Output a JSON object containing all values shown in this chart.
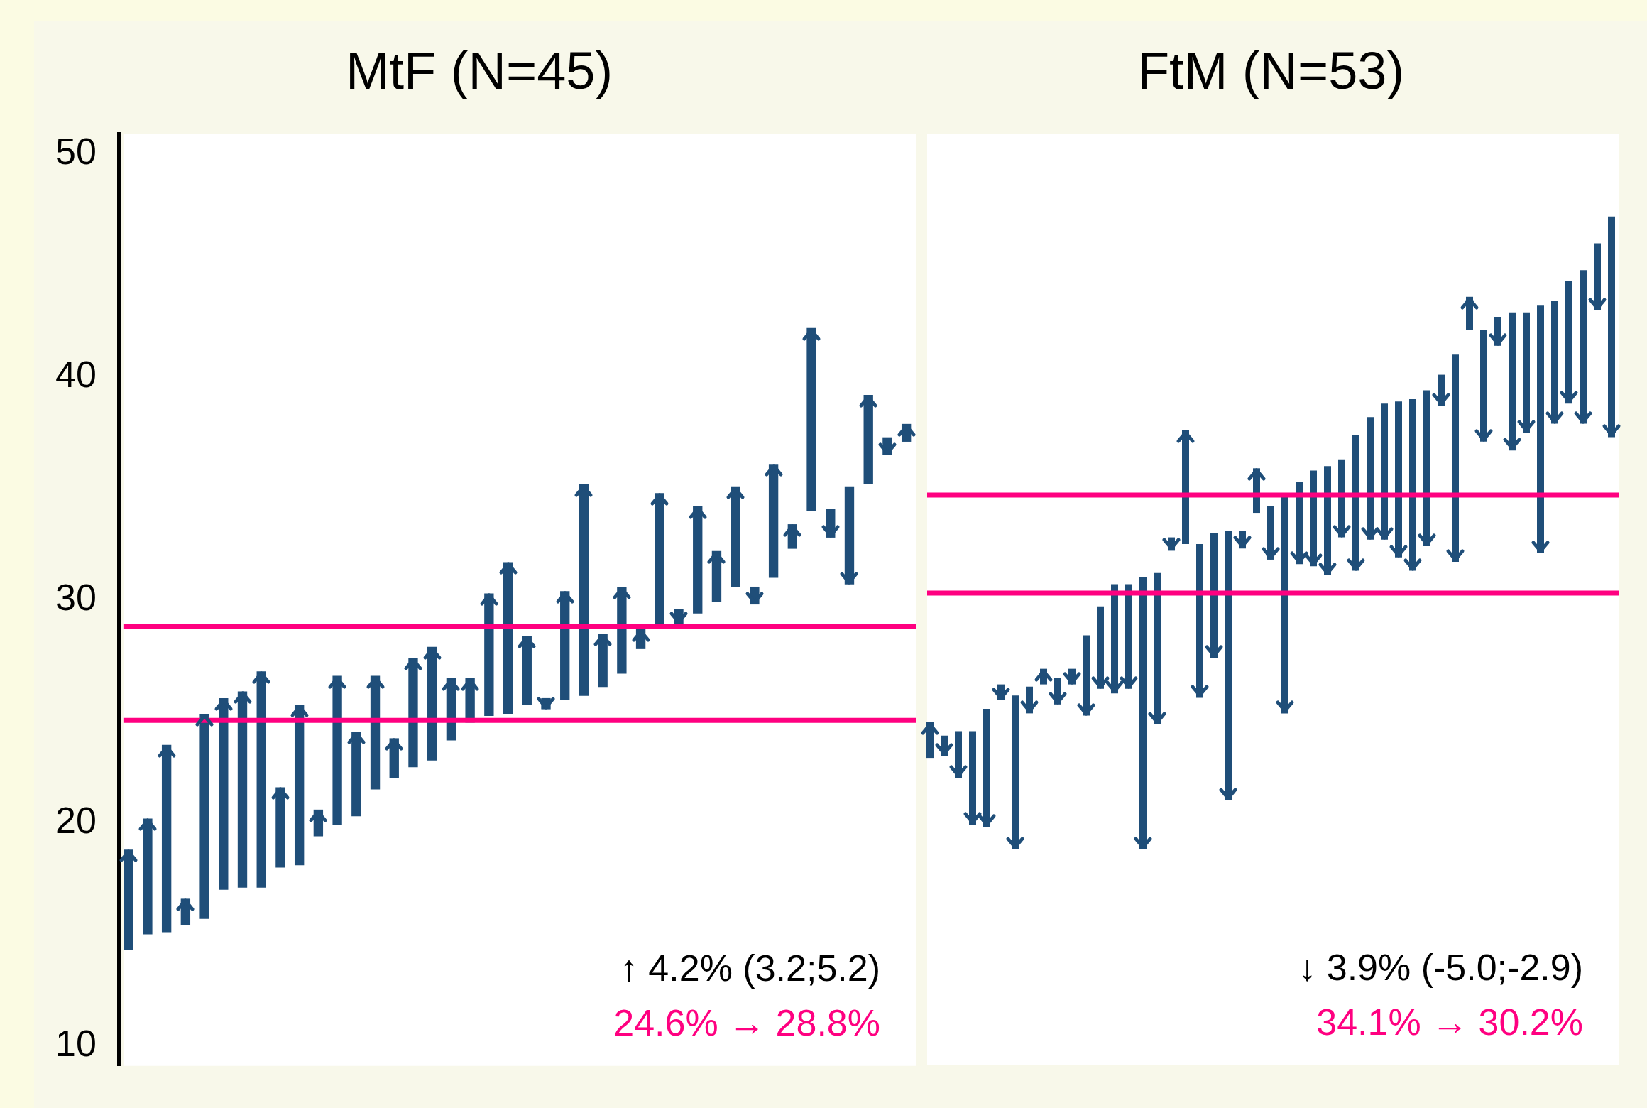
{
  "chart_data": [
    {
      "type": "bar",
      "title": "MtF (N=45)",
      "tick_labels": "y",
      "color": "#1f4e79",
      "ylim": [
        9.1,
        50.9
      ],
      "yticks": [
        10,
        20,
        30,
        40,
        50
      ],
      "categories": [
        null,
        null,
        null,
        null,
        null,
        null,
        null,
        null,
        null,
        null,
        null,
        null,
        null,
        null,
        null,
        null,
        null,
        null,
        null,
        null,
        null,
        null,
        null,
        null,
        null,
        null,
        null,
        null,
        null,
        null,
        null,
        null,
        null,
        null,
        null,
        null,
        null,
        null,
        null,
        null,
        null,
        null
      ],
      "base": [
        14.3,
        15.0,
        15.1,
        15.4,
        15.7,
        17.0,
        17.1,
        17.1,
        18.0,
        18.1,
        19.4,
        19.9,
        20.3,
        21.5,
        22.0,
        22.5,
        22.8,
        23.7,
        24.5,
        24.8,
        24.9,
        25.3,
        25.6,
        25.5,
        25.7,
        26.1,
        26.7,
        27.8,
        28.7,
        29.6,
        29.4,
        29.9,
        30.6,
        30.6,
        31.0,
        32.3,
        34.0,
        34.1,
        35.1,
        35.2,
        37.3,
        37.1
      ],
      "values": [
        4.5,
        5.2,
        8.4,
        1.2,
        9.2,
        8.6,
        8.8,
        9.7,
        3.6,
        7.2,
        1.2,
        6.7,
        3.8,
        5.1,
        1.8,
        4.9,
        5.1,
        2.8,
        2.0,
        5.5,
        6.8,
        3.1,
        -0.5,
        4.9,
        9.5,
        2.4,
        3.9,
        0.9,
        6.1,
        -0.7,
        4.8,
        2.3,
        4.5,
        -0.8,
        5.1,
        1.1,
        8.2,
        -1.3,
        -4.4,
        4.0,
        -0.8,
        0.8
      ],
      "ref_lines": [
        {
          "axis": "y",
          "value": 24.6,
          "color": "#ff0080"
        },
        {
          "axis": "y",
          "value": 28.8,
          "color": "#ff0080"
        }
      ],
      "annotations": [
        "↑ 4.2% (3.2;5.2)",
        "24.6% → 28.8%"
      ]
    },
    {
      "type": "bar",
      "title": "FtM (N=53)",
      "tick_labels": false,
      "color": "#1f4e79",
      "ylim": [
        9.1,
        50.9
      ],
      "categories": [
        null,
        null,
        null,
        null,
        null,
        null,
        null,
        null,
        null,
        null,
        null,
        null,
        null,
        null,
        null,
        null,
        null,
        null,
        null,
        null,
        null,
        null,
        null,
        null,
        null,
        null,
        null,
        null,
        null,
        null,
        null,
        null,
        null,
        null,
        null,
        null,
        null,
        null,
        null,
        null,
        null,
        null,
        null,
        null,
        null,
        null,
        null,
        null,
        null
      ],
      "base": [
        22.9,
        23.9,
        24.1,
        24.1,
        25.1,
        26.2,
        25.7,
        26.1,
        26.2,
        26.5,
        26.9,
        28.4,
        29.7,
        30.7,
        30.7,
        31.0,
        31.2,
        32.8,
        32.5,
        32.5,
        33.0,
        33.1,
        33.1,
        33.9,
        34.2,
        34.6,
        35.3,
        35.8,
        36.0,
        36.3,
        37.4,
        38.2,
        38.8,
        38.9,
        39.0,
        39.4,
        40.1,
        41.0,
        42.1,
        42.1,
        42.7,
        42.9,
        42.9,
        43.2,
        43.4,
        44.3,
        44.8,
        46.0,
        47.2
      ],
      "values": [
        1.6,
        -0.9,
        -2.1,
        -4.2,
        -5.3,
        -0.7,
        -6.9,
        -1.2,
        0.7,
        -1.2,
        -0.7,
        -3.6,
        -3.7,
        -4.9,
        -4.7,
        -12.2,
        -6.8,
        -0.6,
        5.1,
        -6.9,
        -5.6,
        -12.1,
        -0.8,
        2.0,
        -2.4,
        -9.7,
        -3.7,
        -4.3,
        -4.9,
        -3.5,
        -6.1,
        -5.5,
        -6.1,
        -7.0,
        -7.7,
        -7.0,
        -1.4,
        -9.3,
        1.5,
        -5.0,
        -1.3,
        -6.2,
        -5.4,
        -11.1,
        -5.5,
        -5.5,
        -6.9,
        -3.0,
        -9.9
      ],
      "ref_lines": [
        {
          "axis": "y",
          "value": 34.7,
          "color": "#ff0080"
        },
        {
          "axis": "y",
          "value": 30.3,
          "color": "#ff0080"
        }
      ],
      "annotations": [
        "↓ 3.9% (-5.0;-2.9)",
        "34.1% → 30.2%"
      ]
    }
  ]
}
